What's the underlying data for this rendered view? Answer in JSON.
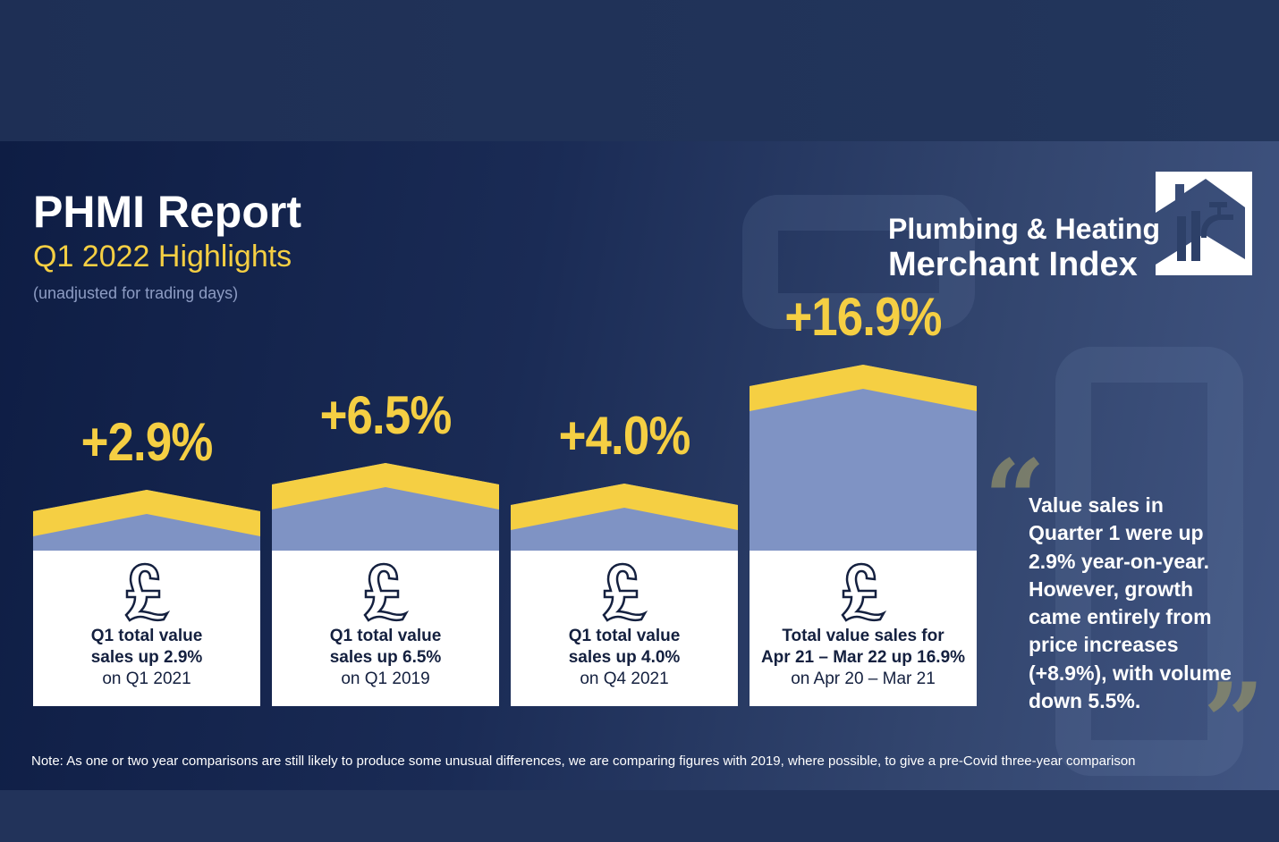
{
  "header": {
    "title": "PHMI Report",
    "subtitle": "Q1 2022 Highlights",
    "caption": "(unadjusted for trading days)"
  },
  "logo": {
    "line1": "Plumbing & Heating",
    "line2": "Merchant Index",
    "icon": "house-tap-icon"
  },
  "colors": {
    "accent": "#f5cf43",
    "roof_blue": "#7f93c4",
    "navy": "#0e1d44"
  },
  "cards": [
    {
      "pct": "+2.9%",
      "value": 2.9,
      "line1": "Q1 total value",
      "line2": "sales up 2.9%",
      "line3": "on Q1 2021",
      "icon": "pound-icon"
    },
    {
      "pct": "+6.5%",
      "value": 6.5,
      "line1": "Q1 total value",
      "line2": "sales up 6.5%",
      "line3": "on Q1 2019",
      "icon": "pound-icon"
    },
    {
      "pct": "+4.0%",
      "value": 4.0,
      "line1": "Q1 total value",
      "line2": "sales up 4.0%",
      "line3": "on Q4 2021",
      "icon": "pound-icon"
    },
    {
      "pct": "+16.9%",
      "value": 16.9,
      "line1": "Total value sales for",
      "line2": "Apr 21 – Mar 22 up 16.9%",
      "line3": "on Apr 20 – Mar 21",
      "icon": "pound-icon"
    }
  ],
  "quote": "Value sales in Quarter 1 were up 2.9% year-on-year. However, growth came entirely from price increases (+8.9%), with volume down 5.5%.",
  "note": "Note: As one or two year comparisons are still likely to produce some unusual differences, we are comparing figures with 2019, where possible, to give a pre-Covid three-year comparison"
}
